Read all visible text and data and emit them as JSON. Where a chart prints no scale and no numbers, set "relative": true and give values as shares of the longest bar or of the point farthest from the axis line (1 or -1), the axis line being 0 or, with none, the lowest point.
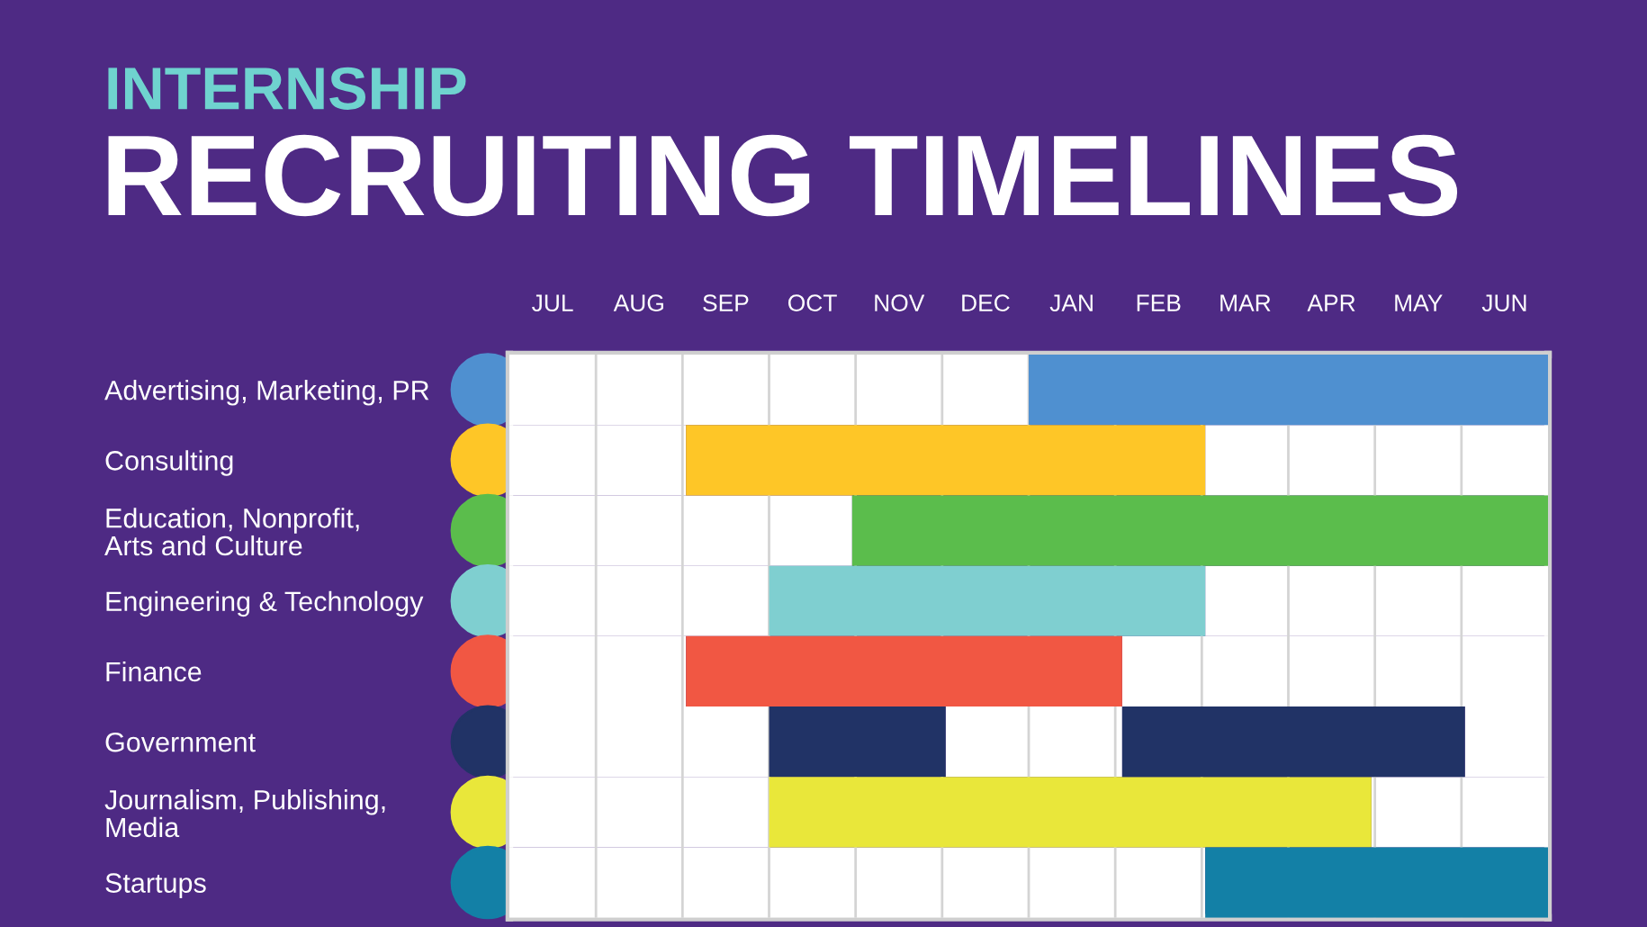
{
  "chart_data": {
    "type": "bar",
    "orientation": "horizontal",
    "stacked": true,
    "relative": true,
    "title": "RECRUITING TIMELINES",
    "subtitle": "INTERNSHIP",
    "categories": [
      "Advertising, Marketing, PR",
      "Consulting",
      "Education, Nonprofit,\nArts and Culture",
      "Engineering & Technology",
      "Finance",
      "Government",
      "Journalism, Publishing,\nMedia",
      "Startups"
    ],
    "series": [
      {
        "color": "#ffffff",
        "values": [
          0.5,
          0.17,
          0.33,
          0.25,
          0.17,
          0.25,
          0.25,
          0.67
        ]
      },
      {
        "colors": [
          "#4f90d0",
          "#fec627",
          "#5bbd4c",
          "#7fcfd0",
          "#f15743",
          "#213366",
          "#e9e73a",
          "#1380a6"
        ],
        "values": [
          0.5,
          0.5,
          0.67,
          0.42,
          0.42,
          0.17,
          0.58,
          0.33
        ]
      },
      {
        "color": "#ffffff",
        "values": [
          null,
          null,
          null,
          null,
          null,
          0.17,
          null,
          null
        ]
      },
      {
        "colors": [
          null,
          null,
          null,
          null,
          null,
          "#213366",
          null,
          null
        ],
        "values": [
          null,
          null,
          null,
          null,
          null,
          0.33,
          null,
          null
        ]
      },
      {
        "color": "#ffffff",
        "values": [
          null,
          0.33,
          null,
          0.33,
          0.41,
          0.08,
          0.17,
          null
        ]
      }
    ],
    "annotations": [
      "JUL",
      "AUG",
      "SEP",
      "OCT",
      "NOV",
      "DEC",
      "JAN",
      "FEB",
      "MAR",
      "APR",
      "MAY",
      "JUN"
    ],
    "grid": "x"
  }
}
